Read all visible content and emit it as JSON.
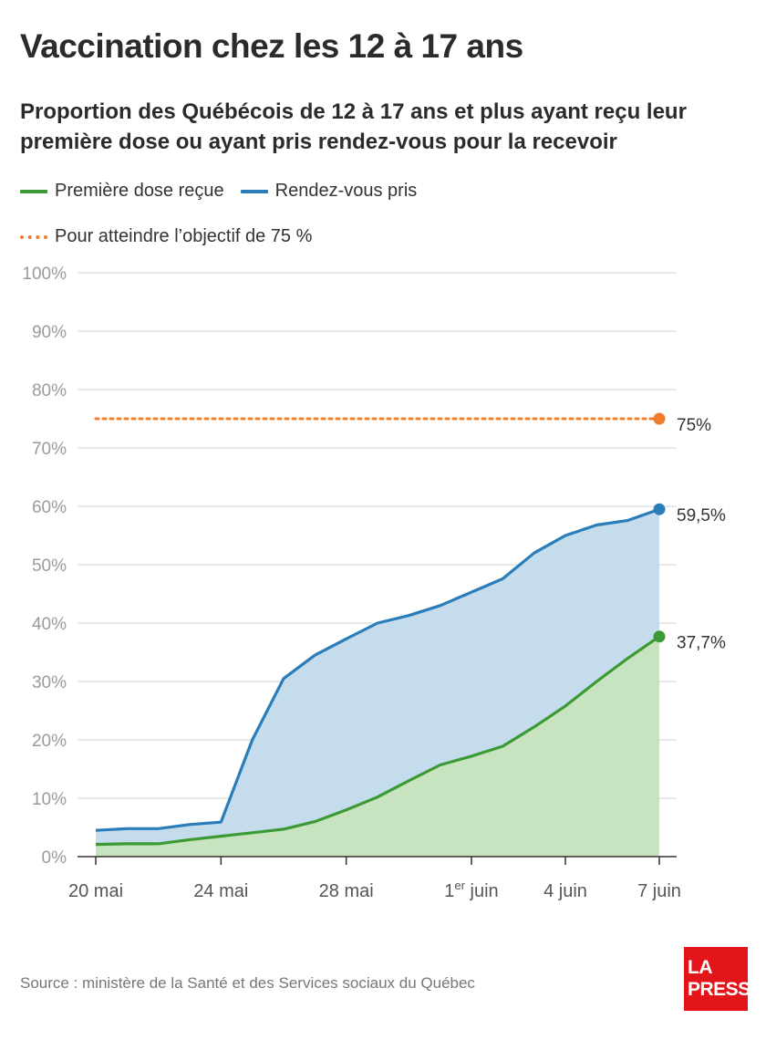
{
  "title": "Vaccination chez les 12 à 17 ans",
  "subtitle": "Proportion des Québécois de 12 à 17 ans et plus ayant reçu leur première dose ou ayant pris rendez-vous pour la recevoir",
  "legend": {
    "first_dose": "Première dose reçue",
    "appointments": "Rendez-vous pris",
    "target": "Pour atteindre l’objectif de 75 %"
  },
  "colors": {
    "first_dose": "#3c9a35",
    "first_dose_fill": "#c8e3c0",
    "appointments": "#2a7db8",
    "appointments_fill": "#c5dced",
    "target": "#f07c2f",
    "grid": "#d9d9d9",
    "tick_text": "#9a9a9a"
  },
  "source": "Source : ministère de la Santé et des Services sociaux du Québec",
  "logo": {
    "line1": "LA",
    "line2": "PRESSE"
  },
  "chart_data": {
    "type": "area",
    "x": [
      "20 mai",
      "21 mai",
      "22 mai",
      "23 mai",
      "24 mai",
      "25 mai",
      "26 mai",
      "27 mai",
      "28 mai",
      "29 mai",
      "30 mai",
      "31 mai",
      "1er juin",
      "2 juin",
      "3 juin",
      "4 juin",
      "5 juin",
      "6 juin",
      "7 juin"
    ],
    "x_tick_labels": [
      {
        "index": 0,
        "label": "20 mai"
      },
      {
        "index": 4,
        "label": "24 mai"
      },
      {
        "index": 8,
        "label": "28 mai"
      },
      {
        "index": 12,
        "label": "1",
        "sup": "er",
        "rest": " juin"
      },
      {
        "index": 15,
        "label": "4 juin"
      },
      {
        "index": 18,
        "label": "7 juin"
      }
    ],
    "y_ticks": [
      "0%",
      "10%",
      "20%",
      "30%",
      "40%",
      "50%",
      "60%",
      "70%",
      "80%",
      "90%",
      "100%"
    ],
    "ylim": [
      0,
      100
    ],
    "grid": true,
    "series": [
      {
        "name": "Rendez-vous pris",
        "key": "appointments",
        "values": [
          4.5,
          4.8,
          4.8,
          5.5,
          5.9,
          20,
          30.5,
          34.5,
          37.3,
          40,
          41.3,
          43,
          45.3,
          47.6,
          52,
          55,
          56.8,
          57.6,
          59.5
        ],
        "end_label": "59,5%"
      },
      {
        "name": "Première dose reçue",
        "key": "first_dose",
        "values": [
          2.1,
          2.2,
          2.2,
          2.9,
          3.5,
          4.1,
          4.7,
          6,
          8,
          10.2,
          13,
          15.7,
          17.2,
          18.9,
          22.2,
          25.8,
          30,
          34,
          37.7
        ],
        "end_label": "37,7%"
      }
    ],
    "target": {
      "value": 75,
      "end_label": "75%"
    }
  }
}
